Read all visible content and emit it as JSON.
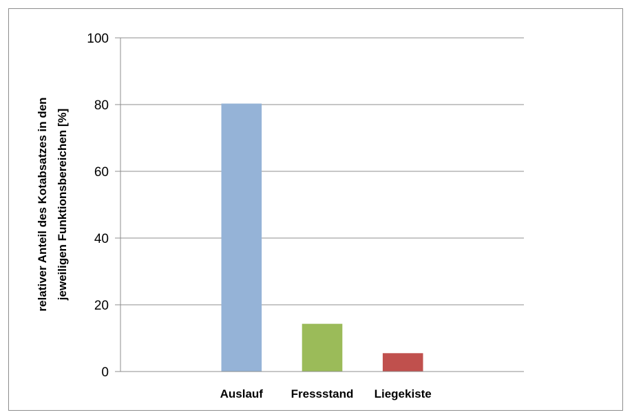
{
  "chart_data": {
    "type": "bar",
    "title": "",
    "xlabel": "",
    "ylabel": [
      "relativer Anteil des Kotabsatzes in den",
      "jeweiligen Funktionsbereichen [%]"
    ],
    "categories": [
      "",
      "Auslauf",
      "Fressstand",
      "Liegekiste",
      ""
    ],
    "values": [
      null,
      80.3,
      14.3,
      5.5,
      null
    ],
    "colors": [
      null,
      "#95b3d7",
      "#9bbb59",
      "#c0504d",
      null
    ],
    "ylim": [
      0,
      100
    ],
    "yticks": [
      0,
      20,
      40,
      60,
      80,
      100
    ],
    "ytick_labels": [
      "0",
      "20",
      "40",
      "60",
      "80",
      "100"
    ],
    "grid": true,
    "legend": false
  }
}
